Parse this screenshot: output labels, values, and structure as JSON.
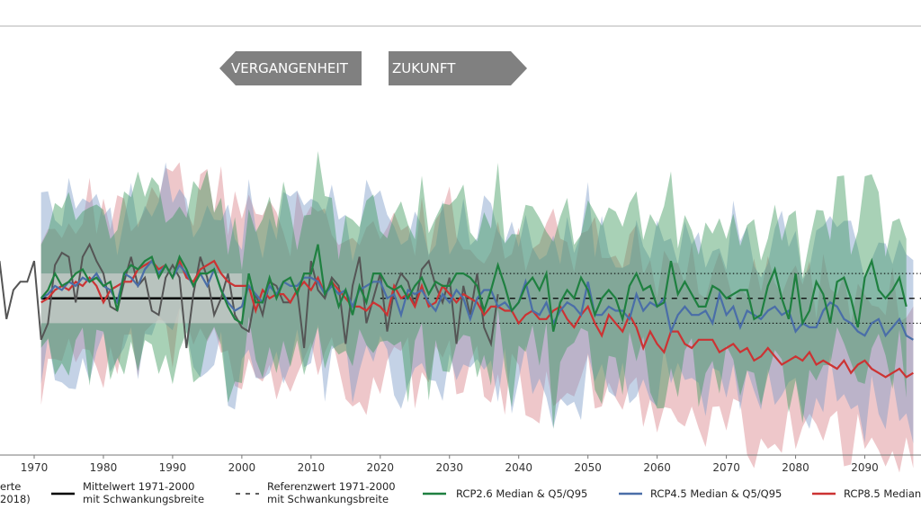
{
  "chart_data": {
    "type": "line",
    "xlim": [
      1965,
      2096
    ],
    "ylim": [
      -3.0,
      3.4
    ],
    "grid": false,
    "legend_position": "bottom",
    "x_ticks": [
      1970,
      1980,
      1990,
      2000,
      2010,
      2020,
      2030,
      2040,
      2050,
      2060,
      2070,
      2080,
      2090
    ],
    "arrows": {
      "past": "VERGANGENHEIT",
      "future": "ZUKUNFT"
    },
    "reference": {
      "mean_line": {
        "x_start": 1971,
        "x_end": 2000,
        "y": 0.0
      },
      "band": {
        "x_start": 1971,
        "x_end": 2000,
        "y_low": -0.6,
        "y_high": 0.6
      },
      "future_mean": {
        "x_start": 2020,
        "x_end": 2096,
        "y": 0.0
      },
      "future_band": {
        "x_start": 2020,
        "x_end": 2096,
        "y_low": -0.6,
        "y_high": 0.6
      }
    },
    "observed": {
      "x_start": 1962,
      "values": [
        0.5,
        1.2,
        0.3,
        0.9,
        -0.5,
        0.2,
        0.4,
        0.4,
        0.9,
        -1.0,
        -0.6,
        0.8,
        1.1,
        1.0,
        -0.1,
        1.0,
        1.3,
        0.9,
        0.6,
        -0.2,
        -0.3,
        0.4,
        1.0,
        0.3,
        0.5,
        -0.3,
        -0.4,
        0.5,
        0.8,
        0.5,
        -1.2,
        0.1,
        1.0,
        0.5,
        -0.4,
        0.0,
        0.6,
        -0.4,
        -0.7,
        -0.8,
        0.1,
        -0.4,
        0.4,
        0.3,
        -0.1,
        -0.1,
        0.2,
        -1.2,
        0.9,
        0.2,
        0.0,
        0.5,
        0.3,
        -1.1,
        0.3,
        1.0,
        -0.6,
        0.0,
        0.6,
        -0.8,
        0.2,
        0.6,
        0.4,
        -0.2,
        0.7,
        0.9,
        0.3,
        -0.1,
        0.5,
        -1.1,
        0.3,
        -0.4,
        0.6,
        -0.7,
        -1.1,
        0.1
      ]
    },
    "series": [
      {
        "name": "RCP2.6 Median & Q5/Q95",
        "color": "#1f8040",
        "band_color": "#3d9a5e",
        "x_start": 1971,
        "median": [
          0.0,
          0.2,
          0.6,
          0.3,
          0.4,
          0.6,
          0.7,
          0.4,
          0.5,
          0.3,
          0.4,
          -0.3,
          0.6,
          0.8,
          0.7,
          0.9,
          1.0,
          0.5,
          0.8,
          0.5,
          1.0,
          0.7,
          0.3,
          0.6,
          0.6,
          0.7,
          0.2,
          -0.2,
          -0.5,
          -0.6,
          0.6,
          -0.1,
          -0.1,
          0.5,
          0.0,
          0.4,
          0.5,
          0.1,
          0.6,
          0.6,
          1.3,
          0.1,
          0.4,
          -0.2,
          0.2,
          -0.4,
          0.3,
          -0.1,
          0.6,
          0.6,
          0.3,
          0.2,
          0.3,
          0.0,
          0.3,
          0.5,
          0.1,
          0.4,
          0.3,
          0.3,
          0.6,
          0.6,
          0.5,
          0.3,
          -0.3,
          0.2,
          0.8,
          0.3,
          -0.3,
          -0.1,
          0.3,
          0.5,
          0.2,
          0.6,
          -0.8,
          -0.1,
          0.2,
          0.0,
          0.5,
          0.2,
          -0.4,
          0.0,
          0.2,
          0.0,
          -0.5,
          0.3,
          0.6,
          0.2,
          0.3,
          -0.2,
          -0.1,
          0.9,
          0.1,
          0.4,
          0.1,
          -0.2,
          -0.2,
          0.3,
          0.2,
          0.0,
          0.1,
          0.2,
          0.2,
          -0.5,
          -0.4,
          0.3,
          0.7,
          0.0,
          -0.5,
          0.6,
          -0.6,
          -0.3,
          0.4,
          0.1,
          -0.6,
          0.4,
          0.5,
          0.0,
          -0.7,
          0.5,
          0.9,
          0.2,
          0.0,
          0.2,
          0.5,
          -0.2
        ]
      },
      {
        "name": "RCP4.5 Median & Q5/Q95",
        "color": "#4a6ea8",
        "band_color": "#7d9bc8",
        "x_start": 1971,
        "median": [
          0.0,
          0.1,
          0.3,
          0.2,
          0.4,
          0.3,
          0.5,
          0.4,
          0.6,
          0.3,
          0.2,
          -0.1,
          0.6,
          0.5,
          0.3,
          0.7,
          0.9,
          0.6,
          0.8,
          0.5,
          0.8,
          0.6,
          0.3,
          0.6,
          0.3,
          0.7,
          0.2,
          -0.1,
          -0.3,
          -0.2,
          0.3,
          0.1,
          -0.1,
          0.3,
          0.1,
          0.4,
          0.3,
          0.3,
          0.5,
          0.5,
          0.4,
          0.1,
          0.3,
          0.1,
          0.2,
          -0.2,
          0.2,
          0.3,
          0.4,
          0.4,
          0.0,
          0.1,
          -0.4,
          0.2,
          0.1,
          0.2,
          -0.1,
          -0.3,
          0.1,
          -0.1,
          0.2,
          0.0,
          -0.5,
          0.0,
          0.2,
          0.2,
          -0.2,
          -0.1,
          -0.3,
          -0.1,
          0.4,
          -0.3,
          -0.4,
          -0.1,
          -0.6,
          -0.3,
          -0.1,
          -0.2,
          -0.4,
          0.4,
          -0.4,
          -0.4,
          -0.2,
          -0.3,
          -0.3,
          -0.5,
          0.1,
          -0.3,
          -0.1,
          -0.2,
          0.0,
          -0.8,
          -0.4,
          -0.2,
          -0.4,
          -0.4,
          -0.3,
          -0.6,
          0.1,
          -0.4,
          -0.2,
          -0.7,
          -0.3,
          -0.4,
          -0.5,
          -0.3,
          -0.2,
          -0.4,
          -0.3,
          -0.8,
          -0.6,
          -0.7,
          -0.7,
          -0.3,
          -0.1,
          -0.2,
          -0.5,
          -0.6,
          -0.8,
          -0.9,
          -0.6,
          -0.5,
          -0.9,
          -0.7,
          -0.5,
          -0.9,
          -1.0
        ]
      },
      {
        "name": "RCP8.5 Median & Q5/Q95",
        "color": "#cc3333",
        "band_color": "#d9838a",
        "x_start": 1971,
        "median": [
          -0.1,
          0.0,
          0.2,
          0.3,
          0.2,
          0.4,
          0.3,
          0.5,
          0.3,
          -0.1,
          0.2,
          0.3,
          0.4,
          0.4,
          0.7,
          0.8,
          0.9,
          0.7,
          0.8,
          0.5,
          0.9,
          0.5,
          0.4,
          0.7,
          0.8,
          0.9,
          0.6,
          0.4,
          0.3,
          0.3,
          0.3,
          -0.3,
          0.2,
          0.0,
          0.1,
          0.1,
          -0.1,
          0.2,
          0.4,
          0.2,
          0.5,
          0.1,
          0.4,
          0.2,
          0.0,
          -0.2,
          -0.2,
          -0.3,
          -0.1,
          -0.2,
          -0.4,
          0.3,
          0.0,
          0.1,
          -0.2,
          0.3,
          -0.2,
          -0.1,
          0.3,
          0.1,
          -0.1,
          0.1,
          0.0,
          -0.1,
          -0.4,
          -0.2,
          -0.2,
          -0.3,
          -0.3,
          -0.6,
          -0.4,
          -0.3,
          -0.5,
          -0.5,
          -0.3,
          -0.2,
          -0.5,
          -0.7,
          -0.4,
          -0.2,
          -0.6,
          -0.9,
          -0.4,
          -0.6,
          -0.8,
          -0.4,
          -0.7,
          -1.2,
          -0.8,
          -1.1,
          -1.3,
          -0.8,
          -0.8,
          -1.1,
          -1.2,
          -1.0,
          -1.0,
          -1.0,
          -1.3,
          -1.2,
          -1.1,
          -1.3,
          -1.2,
          -1.5,
          -1.4,
          -1.2,
          -1.4,
          -1.6,
          -1.5,
          -1.4,
          -1.5,
          -1.3,
          -1.6,
          -1.5,
          -1.6,
          -1.7,
          -1.5,
          -1.8,
          -1.6,
          -1.5,
          -1.7,
          -1.8,
          -1.9,
          -1.8,
          -1.7,
          -1.9,
          -1.8
        ]
      }
    ],
    "legend": [
      {
        "key": "observed",
        "text": "erte",
        "text2": "2018)"
      },
      {
        "key": "mean",
        "text": "Mittelwert 1971-2000",
        "text2": "mit Schwankungsbreite"
      },
      {
        "key": "ref",
        "text": "Referenzwert 1971-2000",
        "text2": "mit Schwankungsbreite"
      },
      {
        "key": "rcp26",
        "text": "RCP2.6 Median & Q5/Q95",
        "text2": ""
      },
      {
        "key": "rcp45",
        "text": "RCP4.5 Median & Q5/Q95",
        "text2": ""
      },
      {
        "key": "rcp85",
        "text": "RCP8.5 Median",
        "text2": ""
      }
    ]
  }
}
